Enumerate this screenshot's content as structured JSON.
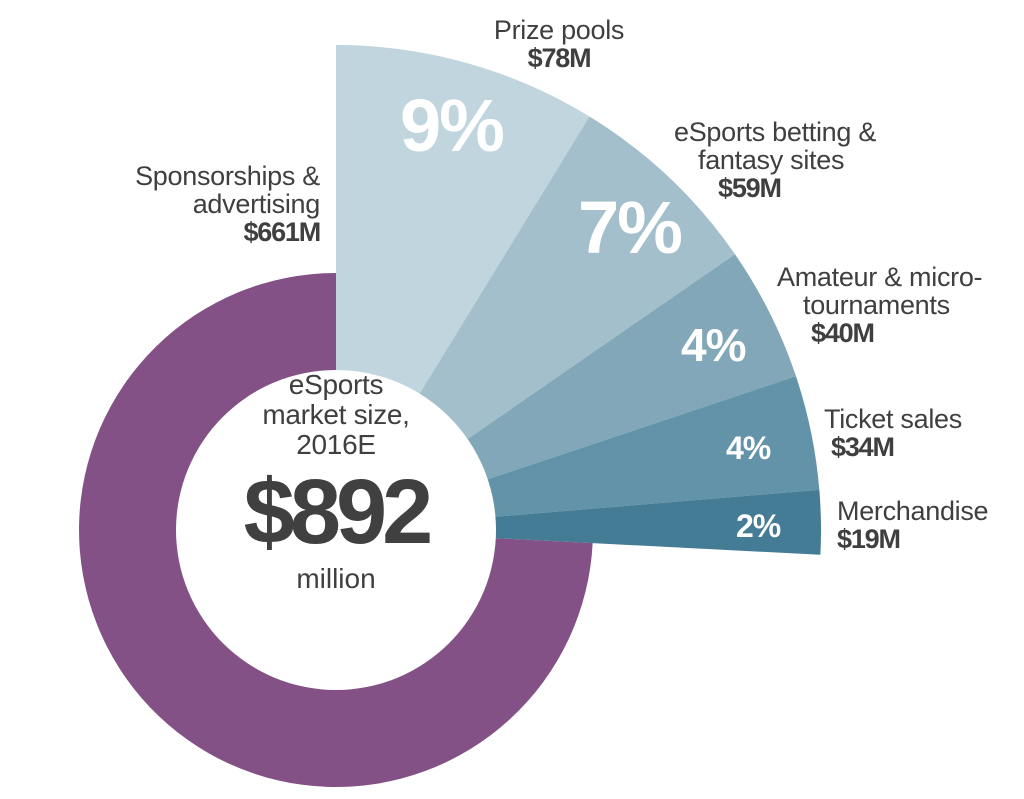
{
  "chart_data": {
    "type": "pie",
    "title": "eSports market size, 2016E",
    "total_label": "$892",
    "total_unit": "million",
    "total_value": 892,
    "unit": "USD millions",
    "categories": [
      "Sponsorships & advertising",
      "Prize pools",
      "eSports betting & fantasy sites",
      "Amateur & micro-tournaments",
      "Ticket sales",
      "Merchandise"
    ],
    "values": [
      661,
      78,
      59,
      40,
      34,
      19
    ],
    "percent_labels": [
      "",
      "9%",
      "7%",
      "4%",
      "4%",
      "2%"
    ],
    "value_labels": [
      "$661M",
      "$78M",
      "$59M",
      "$40M",
      "$34M",
      "$19M"
    ],
    "colors": [
      "#835185",
      "#c1d5de",
      "#a3bfcb",
      "#81a7b8",
      "#6393a8",
      "#447b95"
    ]
  },
  "center": {
    "line1": "eSports",
    "line2": "market size,",
    "line3": "2016E",
    "big": "$892",
    "unit": "million"
  },
  "segments": [
    {
      "name_lines": [
        "Sponsorships &",
        "advertising"
      ],
      "value": "$661M",
      "pct": ""
    },
    {
      "name_lines": [
        "Prize pools"
      ],
      "value": "$78M",
      "pct": "9%"
    },
    {
      "name_lines": [
        "eSports betting &",
        "fantasy sites"
      ],
      "value": "$59M",
      "pct": "7%"
    },
    {
      "name_lines": [
        "Amateur & micro-",
        "tournaments"
      ],
      "value": "$40M",
      "pct": "4%"
    },
    {
      "name_lines": [
        "Ticket sales"
      ],
      "value": "$34M",
      "pct": "4%"
    },
    {
      "name_lines": [
        "Merchandise"
      ],
      "value": "$19M",
      "pct": "2%"
    }
  ]
}
